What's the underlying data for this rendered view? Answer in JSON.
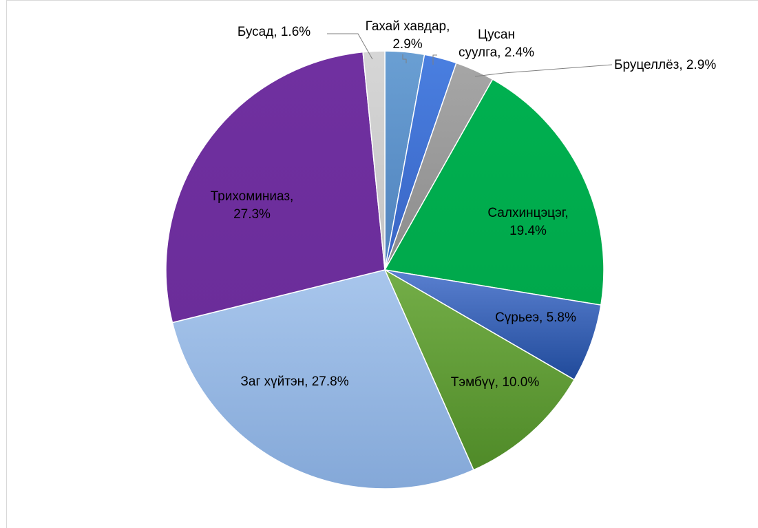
{
  "chart_data": {
    "type": "pie",
    "title": "",
    "slices": [
      {
        "label": "Гахай хавдар",
        "value": 2.9,
        "color": "#5b8fc7"
      },
      {
        "label": "Цусан суулга",
        "value": 2.4,
        "color": "#3f6fcf"
      },
      {
        "label": "Бруцеллёз",
        "value": 2.9,
        "color": "#9a9a9a"
      },
      {
        "label": "Салхинцэцэг",
        "value": 19.4,
        "color": "#00b050"
      },
      {
        "label": "Сүрьеэ",
        "value": 5.8,
        "color": "#2f57a8"
      },
      {
        "label": "Тэмбүү",
        "value": 10.0,
        "color": "#649a3a"
      },
      {
        "label": "Заг хүйтэн",
        "value": 27.8,
        "color": "#95b6e0"
      },
      {
        "label": "Трихоминиаз",
        "value": 27.3,
        "color": "#7030a0"
      },
      {
        "label": "Бусад",
        "value": 1.6,
        "color": "#cfcfcf"
      }
    ],
    "labels": [
      {
        "lines": [
          "Гахай хавдар,",
          "2.9%"
        ]
      },
      {
        "lines": [
          "Цусан",
          "суулга, 2.4%"
        ]
      },
      {
        "lines": [
          "Бруцеллёз, 2.9%"
        ]
      },
      {
        "lines": [
          "Салхинцэцэг,",
          "19.4%"
        ]
      },
      {
        "lines": [
          "Сүрьеэ, 5.8%"
        ]
      },
      {
        "lines": [
          "Тэмбүү, 10.0%"
        ]
      },
      {
        "lines": [
          "Заг хүйтэн, 27.8%"
        ]
      },
      {
        "lines": [
          "Трихоминиаз,",
          "27.3%"
        ]
      },
      {
        "lines": [
          "Бусад, 1.6%"
        ]
      }
    ]
  }
}
